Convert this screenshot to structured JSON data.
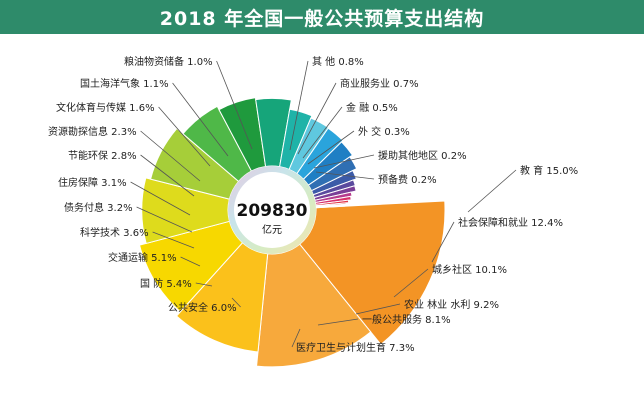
{
  "chart_data": {
    "type": "pie",
    "title": "2018 年全国一般公共预算支出结构",
    "center_value": "209830",
    "center_unit": "亿元",
    "slices": [
      {
        "label": "教 育 15.0%",
        "value": 15.0,
        "color": "#f39425"
      },
      {
        "label": "社会保障和就业 12.4%",
        "value": 12.4,
        "color": "#f7a93c"
      },
      {
        "label": "城乡社区 10.1%",
        "value": 10.1,
        "color": "#fbc11b"
      },
      {
        "label": "农业 林业 水利 9.2%",
        "value": 9.2,
        "color": "#f7d800"
      },
      {
        "label": "一般公共服务 8.1%",
        "value": 8.1,
        "color": "#dedb1c"
      },
      {
        "label": "医疗卫生与计划生育 7.3%",
        "value": 7.3,
        "color": "#a6ce39"
      },
      {
        "label": "公共安全 6.0%",
        "value": 6.0,
        "color": "#4fb848"
      },
      {
        "label": "国 防 5.4%",
        "value": 5.4,
        "color": "#1f9a3d"
      },
      {
        "label": "交通运输 5.1%",
        "value": 5.1,
        "color": "#16a57a"
      },
      {
        "label": "科学技术 3.6%",
        "value": 3.6,
        "color": "#1fb3a8"
      },
      {
        "label": "债务付息 3.2%",
        "value": 3.2,
        "color": "#5fc8df"
      },
      {
        "label": "住房保障 3.1%",
        "value": 3.1,
        "color": "#2aa4dc"
      },
      {
        "label": "节能环保 2.8%",
        "value": 2.8,
        "color": "#1f7fc4"
      },
      {
        "label": "资源勘探信息 2.3%",
        "value": 2.3,
        "color": "#2f6fb3"
      },
      {
        "label": "文化体育与传媒 1.6%",
        "value": 1.6,
        "color": "#3c5ba8"
      },
      {
        "label": "国土海洋气象 1.1%",
        "value": 1.1,
        "color": "#5a4a9e"
      },
      {
        "label": "粮油物资储备 1.0%",
        "value": 1.0,
        "color": "#7b3f97"
      },
      {
        "label": "其 他 0.8%",
        "value": 0.8,
        "color": "#b63c8e"
      },
      {
        "label": "商业服务业 0.7%",
        "value": 0.7,
        "color": "#d8316b"
      },
      {
        "label": "金 融 0.5%",
        "value": 0.5,
        "color": "#e23849"
      },
      {
        "label": "外 交 0.3%",
        "value": 0.3,
        "color": "#e6483a"
      },
      {
        "label": "援助其他地区 0.2%",
        "value": 0.2,
        "color": "#ec5b33"
      },
      {
        "label": "预备费 0.2%",
        "value": 0.2,
        "color": "#f0742f"
      }
    ]
  }
}
